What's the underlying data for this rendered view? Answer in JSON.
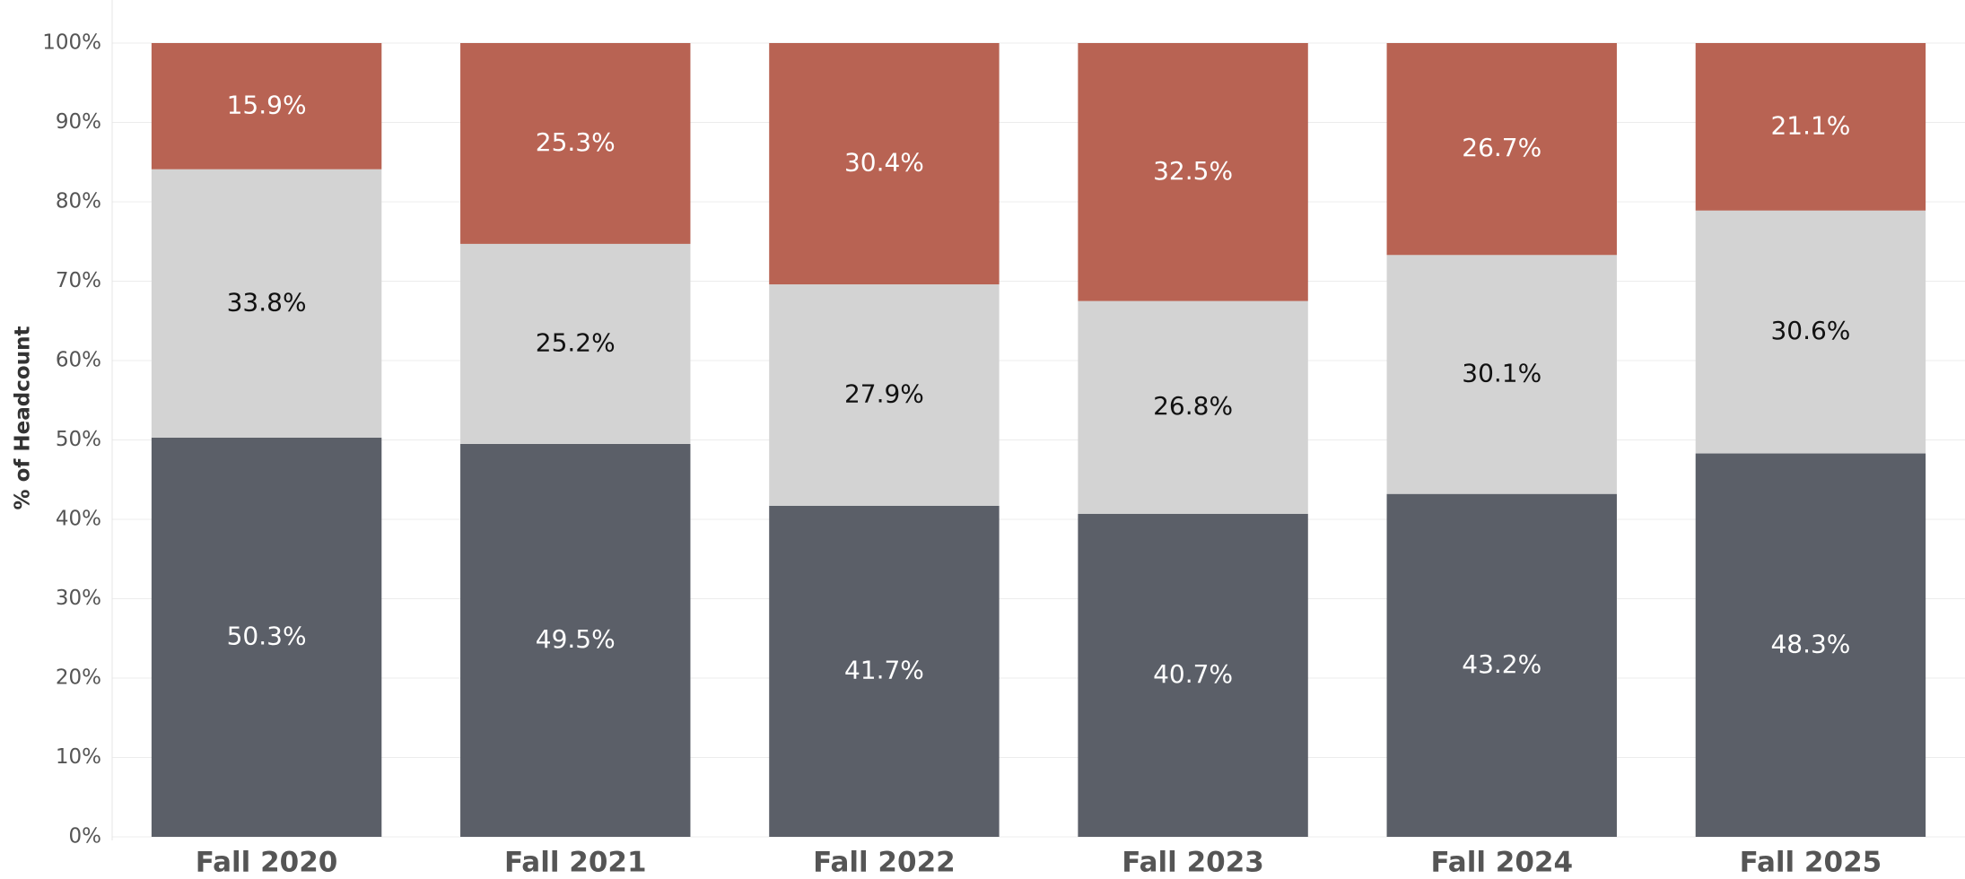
{
  "chart_data": {
    "type": "stacked_bar",
    "y_label": "% of Headcount",
    "categories": [
      "Fall 2020",
      "Fall 2021",
      "Fall 2022",
      "Fall 2023",
      "Fall 2024",
      "Fall 2025"
    ],
    "series": [
      {
        "color": "#5b5f68",
        "label_color": "#ffffff",
        "values": [
          50.3,
          49.5,
          41.7,
          40.7,
          43.2,
          48.3
        ],
        "value_labels": [
          "50.3%",
          "49.5%",
          "41.7%",
          "40.7%",
          "43.2%",
          "48.3%"
        ]
      },
      {
        "color": "#d3d3d3",
        "label_color": "#111111",
        "values": [
          33.8,
          25.2,
          27.9,
          26.8,
          30.1,
          30.6
        ],
        "value_labels": [
          "33.8%",
          "25.2%",
          "27.9%",
          "26.8%",
          "30.1%",
          "30.6%"
        ]
      },
      {
        "color": "#b86353",
        "label_color": "#ffffff",
        "values": [
          15.9,
          25.3,
          30.4,
          32.5,
          26.7,
          21.1
        ],
        "value_labels": [
          "15.9%",
          "25.3%",
          "30.4%",
          "32.5%",
          "26.7%",
          "21.1%"
        ]
      }
    ],
    "ylim": [
      0,
      100
    ],
    "yticks": [
      {
        "value": 0,
        "label": "0%"
      },
      {
        "value": 10,
        "label": "10%"
      },
      {
        "value": 20,
        "label": "20%"
      },
      {
        "value": 30,
        "label": "30%"
      },
      {
        "value": 40,
        "label": "40%"
      },
      {
        "value": 50,
        "label": "50%"
      },
      {
        "value": 60,
        "label": "60%"
      },
      {
        "value": 70,
        "label": "70%"
      },
      {
        "value": 80,
        "label": "80%"
      },
      {
        "value": 90,
        "label": "90%"
      },
      {
        "value": 100,
        "label": "100%"
      }
    ],
    "grid": true
  }
}
